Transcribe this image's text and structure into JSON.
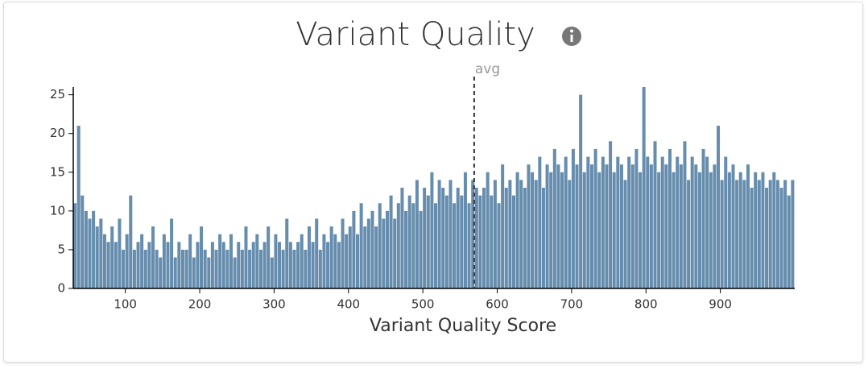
{
  "chart_data": {
    "type": "histogram",
    "title": "Variant Quality",
    "x_label": "Variant Quality Score",
    "bins": [
      30,
      35,
      40,
      45,
      50,
      55,
      60,
      65,
      70,
      75,
      80,
      85,
      90,
      95,
      100,
      105,
      110,
      115,
      120,
      125,
      130,
      135,
      140,
      145,
      150,
      155,
      160,
      165,
      170,
      175,
      180,
      185,
      190,
      195,
      200,
      205,
      210,
      215,
      220,
      225,
      230,
      235,
      240,
      245,
      250,
      255,
      260,
      265,
      270,
      275,
      280,
      285,
      290,
      295,
      300,
      305,
      310,
      315,
      320,
      325,
      330,
      335,
      340,
      345,
      350,
      355,
      360,
      365,
      370,
      375,
      380,
      385,
      390,
      395,
      400,
      405,
      410,
      415,
      420,
      425,
      430,
      435,
      440,
      445,
      450,
      455,
      460,
      465,
      470,
      475,
      480,
      485,
      490,
      495,
      500,
      505,
      510,
      515,
      520,
      525,
      530,
      535,
      540,
      545,
      550,
      555,
      560,
      565,
      570,
      575,
      580,
      585,
      590,
      595,
      600,
      605,
      610,
      615,
      620,
      625,
      630,
      635,
      640,
      645,
      650,
      655,
      660,
      665,
      670,
      675,
      680,
      685,
      690,
      695,
      700,
      705,
      710,
      715,
      720,
      725,
      730,
      735,
      740,
      745,
      750,
      755,
      760,
      765,
      770,
      775,
      780,
      785,
      790,
      795,
      800,
      805,
      810,
      815,
      820,
      825,
      830,
      835,
      840,
      845,
      850,
      855,
      860,
      865,
      870,
      875,
      880,
      885,
      890,
      895,
      900,
      905,
      910,
      915,
      920,
      925,
      930,
      935,
      940,
      945,
      950,
      955,
      960,
      965,
      970,
      975,
      980,
      985,
      990,
      995,
      1000
    ],
    "values": [
      11,
      21,
      12,
      10,
      9,
      10,
      8,
      9,
      7,
      6,
      8,
      6,
      9,
      5,
      7,
      12,
      5,
      6,
      7,
      5,
      6,
      8,
      5,
      4,
      7,
      6,
      9,
      4,
      6,
      5,
      5,
      7,
      4,
      6,
      8,
      5,
      4,
      6,
      5,
      7,
      6,
      5,
      7,
      4,
      6,
      5,
      8,
      5,
      6,
      7,
      5,
      6,
      8,
      4,
      7,
      6,
      5,
      9,
      6,
      5,
      6,
      7,
      5,
      8,
      6,
      9,
      5,
      7,
      6,
      8,
      7,
      6,
      9,
      7,
      8,
      10,
      7,
      11,
      8,
      9,
      10,
      8,
      11,
      9,
      10,
      12,
      9,
      11,
      13,
      10,
      12,
      11,
      14,
      10,
      13,
      12,
      15,
      11,
      14,
      13,
      12,
      14,
      11,
      13,
      12,
      15,
      11,
      14,
      13,
      12,
      13,
      15,
      12,
      14,
      11,
      16,
      13,
      14,
      12,
      15,
      14,
      13,
      16,
      15,
      14,
      17,
      13,
      16,
      15,
      18,
      16,
      15,
      17,
      14,
      18,
      16,
      25,
      15,
      17,
      16,
      18,
      15,
      17,
      16,
      19,
      15,
      17,
      16,
      14,
      17,
      16,
      18,
      15,
      26,
      17,
      16,
      19,
      15,
      17,
      16,
      18,
      15,
      17,
      16,
      19,
      14,
      17,
      16,
      15,
      18,
      17,
      15,
      16,
      21,
      14,
      17,
      15,
      16,
      14,
      15,
      14,
      16,
      13,
      15,
      14,
      15,
      13,
      14,
      15,
      14,
      13,
      14,
      12,
      14
    ],
    "color": "#668dad",
    "xlim": [
      30,
      1000
    ],
    "xticks": [
      100,
      200,
      300,
      400,
      500,
      600,
      700,
      800,
      900
    ],
    "ylim": [
      0,
      26
    ],
    "yticks": [
      0,
      5,
      10,
      15,
      20,
      25
    ],
    "avg_line": {
      "value": 569,
      "label": "avg"
    }
  }
}
